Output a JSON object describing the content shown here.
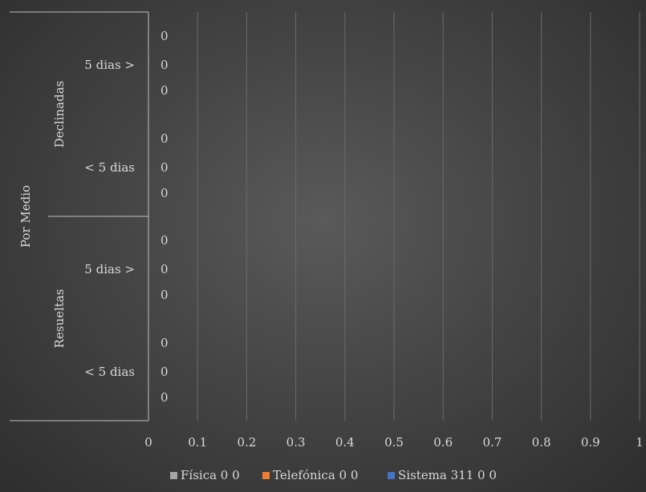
{
  "chart_data": {
    "type": "bar",
    "orientation": "horizontal",
    "xlim": [
      0,
      1
    ],
    "x_ticks": [
      "0",
      "0.1",
      "0.2",
      "0.3",
      "0.4",
      "0.5",
      "0.6",
      "0.7",
      "0.8",
      "0.9",
      "1"
    ],
    "grid": true,
    "legend_position": "bottom",
    "category_levels": {
      "outer": "Por Medio",
      "groups": [
        {
          "label": "Declinadas",
          "subgroups": [
            {
              "label": "5 dias >",
              "rows": [
                0,
                0,
                0
              ]
            },
            {
              "label": "< 5 dias",
              "rows": [
                0,
                0,
                0
              ]
            }
          ]
        },
        {
          "label": "Resueltas",
          "subgroups": [
            {
              "label": "5 dias >",
              "rows": [
                0,
                0,
                0
              ]
            },
            {
              "label": "< 5 dias",
              "rows": [
                0,
                0,
                0
              ]
            }
          ]
        }
      ]
    },
    "series": [
      {
        "name": "Física 0 0",
        "color": "#a5a5a5"
      },
      {
        "name": "Telefónica 0 0",
        "color": "#ed7d31"
      },
      {
        "name": "Sistema 311 0 0",
        "color": "#4472c4"
      }
    ]
  }
}
